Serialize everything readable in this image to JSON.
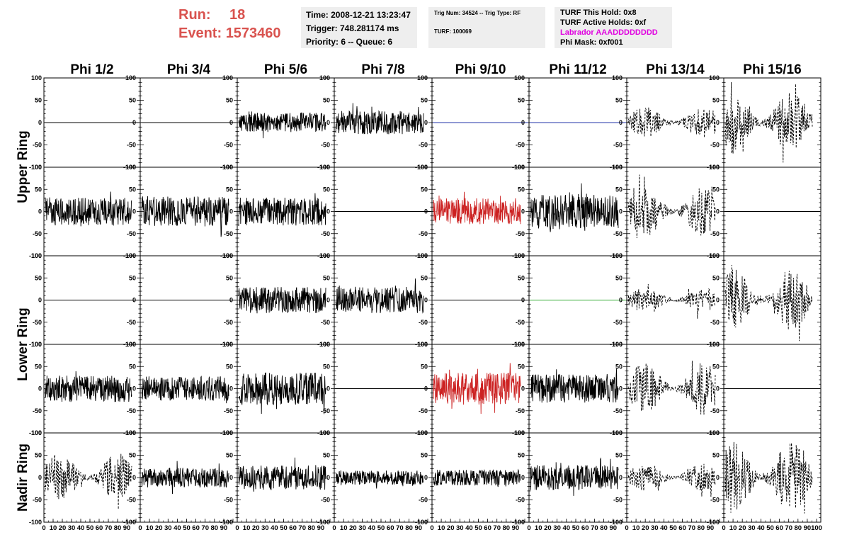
{
  "header": {
    "run_label": "Run:",
    "run_value": "18",
    "event_label": "Event:",
    "event_value": "1573460",
    "time": "Time: 2008-12-21 13:23:47",
    "trigger": "Trigger: 748.281174 ms",
    "priority": "Priority: 6 -- Queue: 6",
    "trig_num": "Trig Num: 34524 -- Trig Type: RF",
    "turf": "TURF: 100069",
    "turf_this_hold": "TURF This Hold: 0x8",
    "turf_active_holds": "TURF Active Holds: 0xf",
    "labrador": "Labrador AAADDDDDDDD",
    "phi_mask": "Phi Mask: 0xf001"
  },
  "colors": {
    "run_text": "#d9534f",
    "labrador": "#e000e0",
    "trace_black": "#000000",
    "trace_red": "#cc2222",
    "trace_blue": "#2233aa",
    "trace_green": "#33aa33",
    "info_bg": "#eeeeee"
  },
  "chart_data": {
    "type": "line",
    "columns": [
      "Phi 1/2",
      "Phi 3/4",
      "Phi 5/6",
      "Phi 7/8",
      "Phi 9/10",
      "Phi 11/12",
      "Phi 13/14",
      "Phi 15/16"
    ],
    "ring_labels": [
      "Upper Ring",
      "Lower Ring",
      "Nadir Ring"
    ],
    "ylim": [
      -100,
      100
    ],
    "xlim": [
      0,
      100
    ],
    "y_ticks": [
      "100",
      "50",
      "0",
      "-50",
      "-100"
    ],
    "x_ticks": [
      "0",
      "10",
      "20",
      "30",
      "40",
      "50",
      "60",
      "70",
      "80",
      "90",
      "100"
    ],
    "grid": false,
    "rows": [
      [
        {
          "style": "flat",
          "color": "black"
        },
        {
          "style": "flat",
          "color": "black"
        },
        {
          "style": "noise",
          "color": "black",
          "amp": 22
        },
        {
          "style": "noise",
          "color": "black",
          "amp": 26
        },
        {
          "style": "flat",
          "color": "blue"
        },
        {
          "style": "flat",
          "color": "blue"
        },
        {
          "style": "dashed",
          "color": "black",
          "amp": 35
        },
        {
          "style": "dashed",
          "color": "black",
          "amp": 70
        }
      ],
      [
        {
          "style": "noise",
          "color": "black",
          "amp": 32
        },
        {
          "style": "noise",
          "color": "black",
          "amp": 34
        },
        {
          "style": "noise",
          "color": "black",
          "amp": 32
        },
        {
          "style": "flat",
          "color": "black"
        },
        {
          "style": "noise",
          "color": "red",
          "amp": 30
        },
        {
          "style": "noise",
          "color": "black",
          "amp": 40
        },
        {
          "style": "dashed",
          "color": "black",
          "amp": 55
        },
        {
          "style": "flat",
          "color": "black"
        }
      ],
      [
        {
          "style": "flat",
          "color": "black"
        },
        {
          "style": "flat",
          "color": "black"
        },
        {
          "style": "noise",
          "color": "black",
          "amp": 30
        },
        {
          "style": "noise",
          "color": "black",
          "amp": 30
        },
        {
          "style": "flat",
          "color": "black"
        },
        {
          "style": "flat",
          "color": "green"
        },
        {
          "style": "dashed",
          "color": "black",
          "amp": 28
        },
        {
          "style": "dashed",
          "color": "black",
          "amp": 70
        }
      ],
      [
        {
          "style": "noise",
          "color": "black",
          "amp": 30
        },
        {
          "style": "noise",
          "color": "black",
          "amp": 28
        },
        {
          "style": "noise",
          "color": "black",
          "amp": 36
        },
        {
          "style": "flat",
          "color": "black"
        },
        {
          "style": "noise",
          "color": "red",
          "amp": 36
        },
        {
          "style": "noise",
          "color": "black",
          "amp": 32
        },
        {
          "style": "dashed",
          "color": "black",
          "amp": 60
        },
        {
          "style": "flat",
          "color": "black"
        }
      ],
      [
        {
          "style": "dashed",
          "color": "black",
          "amp": 55
        },
        {
          "style": "noise",
          "color": "black",
          "amp": 22
        },
        {
          "style": "noise",
          "color": "black",
          "amp": 28
        },
        {
          "style": "noise",
          "color": "black",
          "amp": 16
        },
        {
          "style": "noise",
          "color": "black",
          "amp": 18
        },
        {
          "style": "noise",
          "color": "black",
          "amp": 28
        },
        {
          "style": "dashed",
          "color": "black",
          "amp": 32
        },
        {
          "style": "dashed",
          "color": "black",
          "amp": 80
        }
      ]
    ]
  }
}
